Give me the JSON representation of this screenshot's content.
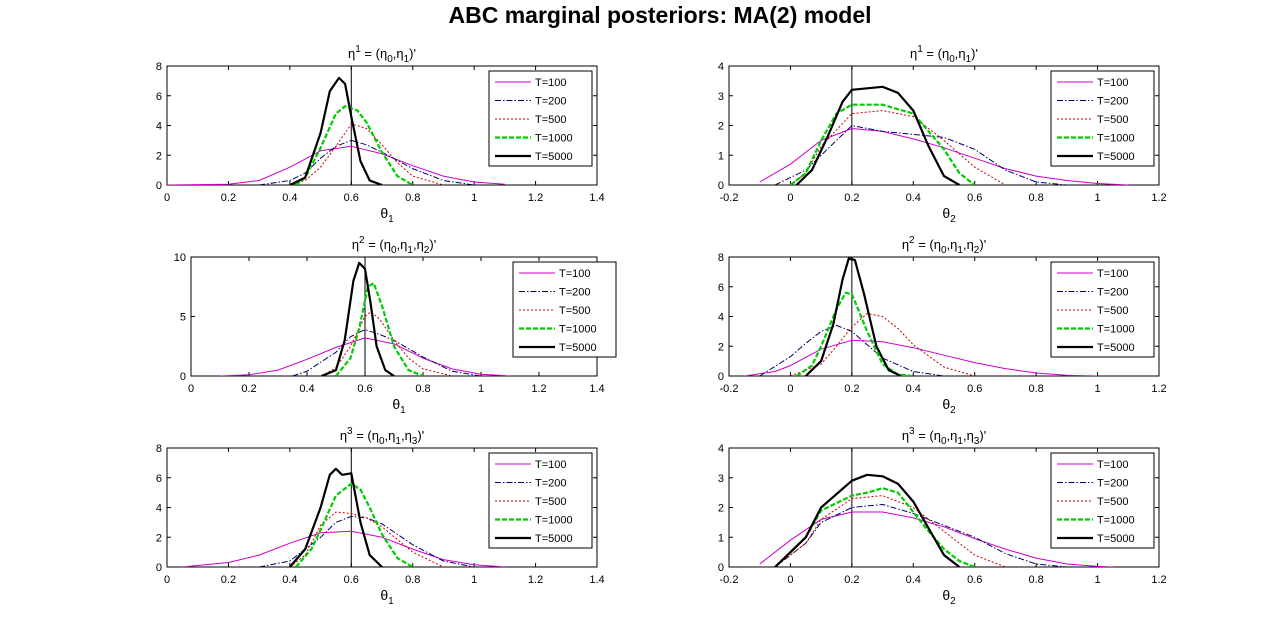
{
  "figure_title": "ABC marginal posteriors: MA(2) model",
  "legend_labels": [
    "T=100",
    "T=200",
    "T=500",
    "T=1000",
    "T=5000"
  ],
  "colors": {
    "T100": "#cc00cc",
    "T200": "#000066",
    "T500": "#cc0000",
    "T1000": "#00cc00",
    "T5000": "#000000"
  },
  "chart_data": [
    {
      "type": "line",
      "id": "r1c1",
      "title": {
        "eta_sup": "1",
        "args": [
          "0",
          "1"
        ]
      },
      "xlabel_sub": "1",
      "xlim": [
        0,
        1.4
      ],
      "ylim": [
        0,
        8
      ],
      "xticks": [
        "0",
        "0.2",
        "0.4",
        "0.6",
        "0.8",
        "1",
        "1.2",
        "1.4"
      ],
      "yticks": [
        "0",
        "2",
        "4",
        "6",
        "8"
      ],
      "true_value": 0.6,
      "series": [
        {
          "name": "T=100",
          "x": [
            0,
            0.2,
            0.3,
            0.4,
            0.5,
            0.6,
            0.7,
            0.8,
            0.9,
            1.0,
            1.1
          ],
          "y": [
            0,
            0.05,
            0.3,
            1.2,
            2.3,
            2.6,
            2.1,
            1.3,
            0.6,
            0.2,
            0.05
          ]
        },
        {
          "name": "T=200",
          "x": [
            0.3,
            0.4,
            0.45,
            0.5,
            0.55,
            0.6,
            0.65,
            0.7,
            0.8,
            0.9,
            1.0
          ],
          "y": [
            0,
            0.3,
            0.8,
            1.8,
            2.6,
            3.0,
            2.7,
            2.2,
            1.1,
            0.3,
            0
          ]
        },
        {
          "name": "T=500",
          "x": [
            0.4,
            0.45,
            0.5,
            0.55,
            0.6,
            0.65,
            0.7,
            0.75,
            0.8,
            0.9
          ],
          "y": [
            0,
            0.3,
            1.2,
            2.6,
            4.1,
            3.8,
            2.7,
            1.5,
            0.6,
            0
          ]
        },
        {
          "name": "T=1000",
          "x": [
            0.42,
            0.45,
            0.5,
            0.55,
            0.58,
            0.62,
            0.65,
            0.7,
            0.75,
            0.8
          ],
          "y": [
            0,
            0.5,
            2.5,
            4.8,
            5.3,
            5.0,
            4.2,
            2.2,
            0.6,
            0
          ]
        },
        {
          "name": "T=5000",
          "x": [
            0.4,
            0.45,
            0.5,
            0.53,
            0.56,
            0.58,
            0.6,
            0.63,
            0.66,
            0.7
          ],
          "y": [
            0,
            0.5,
            3.5,
            6.3,
            7.2,
            6.8,
            4.6,
            1.6,
            0.3,
            0
          ]
        }
      ]
    },
    {
      "type": "line",
      "id": "r1c2",
      "title": {
        "eta_sup": "1",
        "args": [
          "0",
          "1"
        ]
      },
      "xlabel_sub": "2",
      "xlim": [
        -0.2,
        1.2
      ],
      "ylim": [
        0,
        4
      ],
      "xticks": [
        "-0.2",
        "0",
        "0.2",
        "0.4",
        "0.6",
        "0.8",
        "1",
        "1.2"
      ],
      "yticks": [
        "0",
        "1",
        "2",
        "3",
        "4"
      ],
      "true_value": 0.2,
      "series": [
        {
          "name": "T=100",
          "x": [
            -0.1,
            0,
            0.1,
            0.2,
            0.3,
            0.4,
            0.5,
            0.6,
            0.7,
            0.8,
            0.9,
            1.0,
            1.1
          ],
          "y": [
            0.1,
            0.7,
            1.5,
            1.9,
            1.8,
            1.55,
            1.25,
            0.9,
            0.55,
            0.3,
            0.15,
            0.05,
            0
          ]
        },
        {
          "name": "T=200",
          "x": [
            -0.05,
            0.05,
            0.1,
            0.2,
            0.3,
            0.4,
            0.5,
            0.6,
            0.7,
            0.8,
            0.9
          ],
          "y": [
            0,
            0.5,
            1.0,
            2.0,
            1.8,
            1.7,
            1.6,
            1.2,
            0.5,
            0.1,
            0
          ]
        },
        {
          "name": "T=500",
          "x": [
            0,
            0.05,
            0.1,
            0.2,
            0.3,
            0.4,
            0.5,
            0.6,
            0.7
          ],
          "y": [
            0,
            0.4,
            1.3,
            2.4,
            2.5,
            2.3,
            1.5,
            0.6,
            0
          ]
        },
        {
          "name": "T=1000",
          "x": [
            0,
            0.05,
            0.1,
            0.15,
            0.2,
            0.3,
            0.4,
            0.5,
            0.55,
            0.6
          ],
          "y": [
            0,
            0.4,
            1.5,
            2.4,
            2.7,
            2.7,
            2.4,
            1.2,
            0.4,
            0
          ]
        },
        {
          "name": "T=5000",
          "x": [
            0.02,
            0.07,
            0.12,
            0.17,
            0.2,
            0.3,
            0.35,
            0.4,
            0.45,
            0.5,
            0.55
          ],
          "y": [
            0,
            0.5,
            1.6,
            2.8,
            3.2,
            3.3,
            3.1,
            2.5,
            1.3,
            0.3,
            0
          ]
        }
      ]
    },
    {
      "type": "line",
      "id": "r2c1",
      "title": {
        "eta_sup": "2",
        "args": [
          "0",
          "1",
          "2"
        ]
      },
      "xlabel_sub": "1",
      "xlim": [
        0,
        1.4
      ],
      "ylim": [
        0,
        10
      ],
      "xticks": [
        "0",
        "0.2",
        "0.4",
        "0.6",
        "0.8",
        "1",
        "1.2",
        "1.4"
      ],
      "yticks": [
        "0",
        "5",
        "10"
      ],
      "true_value": 0.6,
      "series": [
        {
          "name": "T=100",
          "x": [
            0.1,
            0.2,
            0.3,
            0.4,
            0.5,
            0.6,
            0.7,
            0.8,
            0.9,
            1.0,
            1.1
          ],
          "y": [
            0,
            0.1,
            0.5,
            1.4,
            2.4,
            3.2,
            2.7,
            1.5,
            0.6,
            0.15,
            0
          ]
        },
        {
          "name": "T=200",
          "x": [
            0.35,
            0.4,
            0.5,
            0.55,
            0.6,
            0.65,
            0.7,
            0.8,
            0.9,
            1.0
          ],
          "y": [
            0,
            0.4,
            2.0,
            3.3,
            3.9,
            3.5,
            3.0,
            1.6,
            0.4,
            0
          ]
        },
        {
          "name": "T=500",
          "x": [
            0.45,
            0.5,
            0.55,
            0.6,
            0.62,
            0.65,
            0.7,
            0.75,
            0.8,
            0.9
          ],
          "y": [
            0,
            0.7,
            2.5,
            5.0,
            5.4,
            4.8,
            3.0,
            1.5,
            0.6,
            0
          ]
        },
        {
          "name": "T=1000",
          "x": [
            0.5,
            0.55,
            0.58,
            0.61,
            0.63,
            0.66,
            0.7,
            0.75,
            0.8
          ],
          "y": [
            0,
            1.5,
            4.0,
            7.5,
            7.8,
            5.8,
            2.5,
            0.5,
            0
          ]
        },
        {
          "name": "T=5000",
          "x": [
            0.45,
            0.5,
            0.53,
            0.56,
            0.58,
            0.6,
            0.62,
            0.64,
            0.67,
            0.7
          ],
          "y": [
            0,
            0.5,
            3.0,
            8.0,
            9.5,
            9.0,
            6.0,
            2.5,
            0.5,
            0
          ]
        }
      ]
    },
    {
      "type": "line",
      "id": "r2c2",
      "title": {
        "eta_sup": "2",
        "args": [
          "0",
          "1",
          "2"
        ]
      },
      "xlabel_sub": "2",
      "xlim": [
        -0.2,
        1.2
      ],
      "ylim": [
        0,
        8
      ],
      "xticks": [
        "-0.2",
        "0",
        "0.2",
        "0.4",
        "0.6",
        "0.8",
        "1",
        "1.2"
      ],
      "yticks": [
        "0",
        "2",
        "4",
        "6",
        "8"
      ],
      "true_value": 0.2,
      "series": [
        {
          "name": "T=100",
          "x": [
            -0.15,
            -0.05,
            0,
            0.1,
            0.2,
            0.3,
            0.4,
            0.5,
            0.6,
            0.7,
            0.8,
            0.9,
            1.0
          ],
          "y": [
            0,
            0.3,
            0.7,
            1.8,
            2.4,
            2.3,
            1.9,
            1.4,
            0.9,
            0.5,
            0.2,
            0.05,
            0
          ]
        },
        {
          "name": "T=200",
          "x": [
            -0.1,
            0,
            0.05,
            0.1,
            0.15,
            0.2,
            0.25,
            0.3,
            0.4,
            0.5
          ],
          "y": [
            0,
            1.3,
            2.2,
            3.0,
            3.4,
            3.0,
            2.1,
            1.2,
            0.3,
            0
          ]
        },
        {
          "name": "T=500",
          "x": [
            0,
            0.1,
            0.15,
            0.2,
            0.25,
            0.3,
            0.35,
            0.4,
            0.5,
            0.6
          ],
          "y": [
            0,
            0.8,
            2.0,
            3.3,
            4.2,
            4.0,
            3.2,
            2.1,
            0.6,
            0
          ]
        },
        {
          "name": "T=1000",
          "x": [
            0.02,
            0.07,
            0.1,
            0.15,
            0.18,
            0.2,
            0.25,
            0.3,
            0.35,
            0.4
          ],
          "y": [
            0,
            0.7,
            2.0,
            4.5,
            5.6,
            5.5,
            3.0,
            0.8,
            0.1,
            0
          ]
        },
        {
          "name": "T=5000",
          "x": [
            0.05,
            0.1,
            0.14,
            0.17,
            0.19,
            0.21,
            0.24,
            0.28,
            0.32,
            0.36
          ],
          "y": [
            0,
            1.0,
            3.5,
            6.5,
            7.9,
            7.8,
            5.5,
            2.0,
            0.4,
            0
          ]
        }
      ]
    },
    {
      "type": "line",
      "id": "r3c1",
      "title": {
        "eta_sup": "3",
        "args": [
          "0",
          "1",
          "3"
        ]
      },
      "xlabel_sub": "1",
      "xlim": [
        0,
        1.4
      ],
      "ylim": [
        0,
        8
      ],
      "xticks": [
        "0",
        "0.2",
        "0.4",
        "0.6",
        "0.8",
        "1",
        "1.2",
        "1.4"
      ],
      "yticks": [
        "0",
        "2",
        "4",
        "6",
        "8"
      ],
      "true_value": 0.6,
      "series": [
        {
          "name": "T=100",
          "x": [
            0.05,
            0.2,
            0.3,
            0.4,
            0.5,
            0.6,
            0.7,
            0.8,
            0.9,
            1.0,
            1.1
          ],
          "y": [
            0,
            0.3,
            0.8,
            1.6,
            2.3,
            2.4,
            2.0,
            1.2,
            0.5,
            0.15,
            0
          ]
        },
        {
          "name": "T=200",
          "x": [
            0.3,
            0.4,
            0.5,
            0.55,
            0.6,
            0.65,
            0.7,
            0.8,
            0.9,
            1.0
          ],
          "y": [
            0,
            0.4,
            2.0,
            3.0,
            3.4,
            3.3,
            2.9,
            1.5,
            0.4,
            0
          ]
        },
        {
          "name": "T=500",
          "x": [
            0.4,
            0.45,
            0.5,
            0.55,
            0.6,
            0.65,
            0.7,
            0.8,
            0.9
          ],
          "y": [
            0,
            0.8,
            2.8,
            3.7,
            3.6,
            3.3,
            2.7,
            1.0,
            0
          ]
        },
        {
          "name": "T=1000",
          "x": [
            0.42,
            0.47,
            0.5,
            0.55,
            0.6,
            0.63,
            0.66,
            0.7,
            0.75,
            0.8
          ],
          "y": [
            0,
            1.2,
            2.5,
            4.8,
            5.6,
            5.2,
            4.0,
            2.2,
            0.6,
            0
          ]
        },
        {
          "name": "T=5000",
          "x": [
            0.4,
            0.45,
            0.5,
            0.53,
            0.55,
            0.57,
            0.6,
            0.63,
            0.66,
            0.7
          ],
          "y": [
            0,
            1.2,
            4.0,
            6.2,
            6.6,
            6.2,
            6.3,
            3.0,
            0.8,
            0
          ]
        }
      ]
    },
    {
      "type": "line",
      "id": "r3c2",
      "title": {
        "eta_sup": "3",
        "args": [
          "0",
          "1",
          "3"
        ]
      },
      "xlabel_sub": "2",
      "xlim": [
        -0.2,
        1.2
      ],
      "ylim": [
        0,
        4
      ],
      "xticks": [
        "-0.2",
        "0",
        "0.2",
        "0.4",
        "0.6",
        "0.8",
        "1",
        "1.2"
      ],
      "yticks": [
        "0",
        "1",
        "2",
        "3",
        "4"
      ],
      "true_value": 0.2,
      "series": [
        {
          "name": "T=100",
          "x": [
            -0.1,
            0,
            0.1,
            0.2,
            0.3,
            0.4,
            0.5,
            0.6,
            0.7,
            0.8,
            0.9,
            1.0,
            1.05
          ],
          "y": [
            0.1,
            0.9,
            1.6,
            1.85,
            1.85,
            1.65,
            1.35,
            0.95,
            0.6,
            0.3,
            0.1,
            0.02,
            0
          ]
        },
        {
          "name": "T=200",
          "x": [
            -0.05,
            0.05,
            0.1,
            0.2,
            0.3,
            0.4,
            0.5,
            0.6,
            0.7,
            0.8,
            0.9
          ],
          "y": [
            0,
            0.8,
            1.5,
            2.0,
            2.1,
            1.8,
            1.4,
            1.0,
            0.45,
            0.1,
            0
          ]
        },
        {
          "name": "T=500",
          "x": [
            -0.05,
            0.05,
            0.1,
            0.2,
            0.3,
            0.4,
            0.5,
            0.6,
            0.7
          ],
          "y": [
            0,
            0.8,
            1.6,
            2.3,
            2.4,
            2.0,
            1.2,
            0.4,
            0
          ]
        },
        {
          "name": "T=1000",
          "x": [
            -0.05,
            0.05,
            0.1,
            0.2,
            0.25,
            0.3,
            0.35,
            0.45,
            0.5,
            0.55,
            0.6
          ],
          "y": [
            0,
            1.0,
            1.9,
            2.4,
            2.5,
            2.65,
            2.5,
            1.2,
            0.6,
            0.2,
            0
          ]
        },
        {
          "name": "T=5000",
          "x": [
            -0.05,
            0.05,
            0.1,
            0.2,
            0.25,
            0.3,
            0.35,
            0.4,
            0.45,
            0.5,
            0.55
          ],
          "y": [
            0,
            1.0,
            2.0,
            2.9,
            3.1,
            3.05,
            2.8,
            2.2,
            1.3,
            0.4,
            0
          ]
        }
      ]
    }
  ]
}
